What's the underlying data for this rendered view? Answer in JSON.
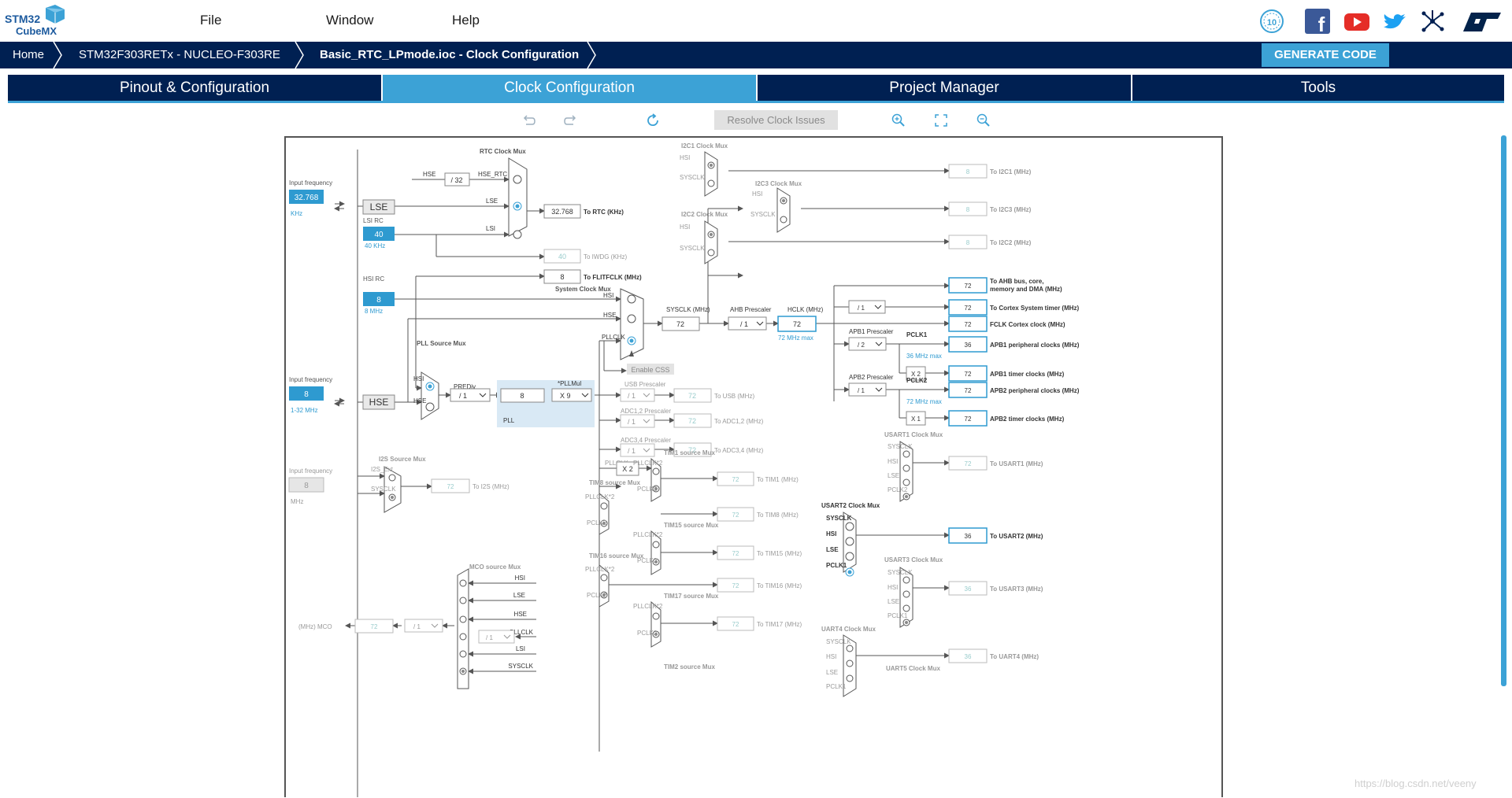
{
  "app": {
    "logo_line1": "STM32",
    "logo_line2": "CubeMX"
  },
  "menu": [
    {
      "label": "File"
    },
    {
      "label": "Window"
    },
    {
      "label": "Help"
    }
  ],
  "breadcrumb": [
    {
      "label": "Home"
    },
    {
      "label": "STM32F303RETx  -  NUCLEO-F303RE"
    },
    {
      "label": "Basic_RTC_LPmode.ioc - Clock Configuration"
    }
  ],
  "generate_label": "GENERATE CODE",
  "tabs": [
    {
      "label": "Pinout & Configuration",
      "active": false
    },
    {
      "label": "Clock Configuration",
      "active": true
    },
    {
      "label": "Project Manager",
      "active": false
    },
    {
      "label": "Tools",
      "active": false
    }
  ],
  "toolbar": {
    "resolve_label": "Resolve Clock Issues",
    "icons": [
      "undo-icon",
      "redo-icon",
      "refresh-icon",
      "zoom-in-icon",
      "fit-icon",
      "zoom-out-icon"
    ]
  },
  "social_icons": [
    "anniversary-10-icon",
    "facebook-icon",
    "youtube-icon",
    "twitter-icon",
    "network-icon",
    "st-logo-icon"
  ],
  "colors": {
    "navy": "#002052",
    "accent": "#3ca2d6",
    "input_fill": "#2e9ad0"
  },
  "watermark": "https://blog.csdn.net/veeny",
  "diagram": {
    "input_freq_label": "Input frequency",
    "lse_value": "32.768",
    "lse_unit": "KHz",
    "lse_box": "LSE",
    "lsi_rc_label": "LSI RC",
    "lsi_value": "40",
    "lsi_caption": "40 KHz",
    "hsi_rc_label": "HSI RC",
    "hsi_value": "8",
    "hsi_caption": "8 MHz",
    "hse_value": "8",
    "hse_range": "1-32 MHz",
    "hse_box": "HSE",
    "i2s_ext_value": "8",
    "i2s_ext_unit": "MHz",
    "rtc_mux_label": "RTC Clock Mux",
    "div32": "/ 32",
    "hse_rtc": "HSE_RTC",
    "lse_in": "LSE",
    "lsi_in": "LSI",
    "hse_in": "HSE",
    "rtc_value": "32.768",
    "rtc_label": "To RTC (KHz)",
    "iwdg_value": "40",
    "iwdg_label": "To IWDG (KHz)",
    "flitf_value": "8",
    "flitf_label": "To FLITFCLK (MHz)",
    "sys_mux_label": "System Clock Mux",
    "sys_hsi": "HSI",
    "sys_hse": "HSE",
    "sys_pllclk": "PLLCLK",
    "sysclk_label": "SYSCLK (MHz)",
    "sysclk_value": "72",
    "ahb_label": "AHB Prescaler",
    "ahb_value": "/ 1",
    "hclk_label": "HCLK (MHz)",
    "hclk_value": "72",
    "hclk_max": "72 MHz max",
    "enable_css": "Enable CSS",
    "pll_src_label": "PLL Source Mux",
    "pll_hsi": "HSI",
    "pll_hse": "HSE",
    "prediv_label": "PREDiv",
    "prediv_value": "/ 1",
    "pll_value": "8",
    "pllmul_label": "*PLLMul",
    "pllmul_value": "X 9",
    "pll_label": "PLL",
    "usb_pre_label": "USB Prescaler",
    "usb_pre": "/ 1",
    "usb_value": "72",
    "usb_to": "To USB (MHz)",
    "adc12_pre_label": "ADC1,2 Prescaler",
    "adc12_pre": "/ 1",
    "adc12_value": "72",
    "adc12_to": "To ADC1,2 (MHz)",
    "adc34_pre_label": "ADC3,4 Prescaler",
    "adc34_pre": "/ 1",
    "adc34_value": "72",
    "adc34_to": "To ADC3,4 (MHz)",
    "pllclk_x2_label": "PLLCLK",
    "pllclk_x2": "X 2",
    "i2s_mux_label": "I2S Source Mux",
    "i2s_ext": "I2S_Ext",
    "i2s_sysclk": "SYSCLK",
    "i2s_value": "72",
    "i2s_to": "To I2S (MHz)",
    "tim1_mux": "TIM1 source Mux",
    "tim1_value": "72",
    "tim1_to": "To TIM1 (MHz)",
    "tim8_mux": "TIM8 source Mux",
    "tim8_value": "72",
    "tim8_to": "To TIM8 (MHz)",
    "tim15_mux": "TIM15 source Mux",
    "tim15_value": "72",
    "tim15_to": "To TIM15 (MHz)",
    "tim16_mux": "TIM16 source Mux",
    "tim16_value": "72",
    "tim16_to": "To TIM16 (MHz)",
    "tim17_mux": "TIM17 source Mux",
    "tim17_value": "72",
    "tim17_to": "To TIM17 (MHz)",
    "tim2_mux": "TIM2 source Mux",
    "pllclk2": "PLLCLK*2",
    "pclk2": "PCLK2",
    "mco_mux_label": "MCO source Mux",
    "mco_value": "72",
    "mco_label": "(MHz) MCO",
    "mco_div": "/ 1",
    "mco_pll_div": "/ 1",
    "mco_hsi": "HSI",
    "mco_lse": "LSE",
    "mco_hse": "HSE",
    "mco_pllclk": "PLLCLK",
    "mco_lsi": "LSI",
    "mco_sysclk": "SYSCLK",
    "i2c1_mux": "I2C1 Clock Mux",
    "i2c1_value": "8",
    "i2c1_to": "To I2C1 (MHz)",
    "i2c3_mux": "I2C3 Clock Mux",
    "i2c3_value": "8",
    "i2c3_to": "To I2C3 (MHz)",
    "i2c2_mux": "I2C2 Clock Mux",
    "i2c2_value": "8",
    "i2c2_to": "To I2C2 (MHz)",
    "hsi": "HSI",
    "sysclk": "SYSCLK",
    "ahb_out_value": "72",
    "ahb_out_label1": "To AHB bus, core,",
    "ahb_out_label2": "memory and DMA (MHz)",
    "cortex_div": "/ 1",
    "cortex_value": "72",
    "cortex_to": "To Cortex System timer (MHz)",
    "fclk_value": "72",
    "fclk_to": "FCLK Cortex clock (MHz)",
    "apb1_pre_label": "APB1 Prescaler",
    "apb1_pre": "/ 2",
    "pclk1_label": "PCLK1",
    "pclk1_max": "36 MHz max",
    "apb1_periph_value": "36",
    "apb1_periph_to": "APB1 peripheral clocks (MHz)",
    "apb1_x2": "X 2",
    "apb1_timer_value": "72",
    "apb1_timer_to": "APB1 timer clocks (MHz)",
    "apb2_pre_label": "APB2 Prescaler",
    "apb2_pre": "/ 1",
    "pclk2_label": "PCLK2",
    "pclk2_max": "72 MHz max",
    "apb2_periph_value": "72",
    "apb2_periph_to": "APB2 peripheral clocks (MHz)",
    "apb2_x1": "X 1",
    "apb2_timer_value": "72",
    "apb2_timer_to": "APB2 timer clocks (MHz)",
    "usart1_mux": "USART1 Clock Mux",
    "usart1_value": "72",
    "usart1_to": "To USART1 (MHz)",
    "usart2_mux": "USART2 Clock Mux",
    "usart2_value": "36",
    "usart2_to": "To USART2 (MHz)",
    "usart3_mux": "USART3 Clock Mux",
    "usart3_value": "36",
    "usart3_to": "To USART3 (MHz)",
    "uart4_mux": "UART4 Clock Mux",
    "uart4_value": "36",
    "uart4_to": "To UART4 (MHz)",
    "uart5_mux": "UART5 Clock Mux",
    "lse": "LSE",
    "pclk1": "PCLK1"
  }
}
